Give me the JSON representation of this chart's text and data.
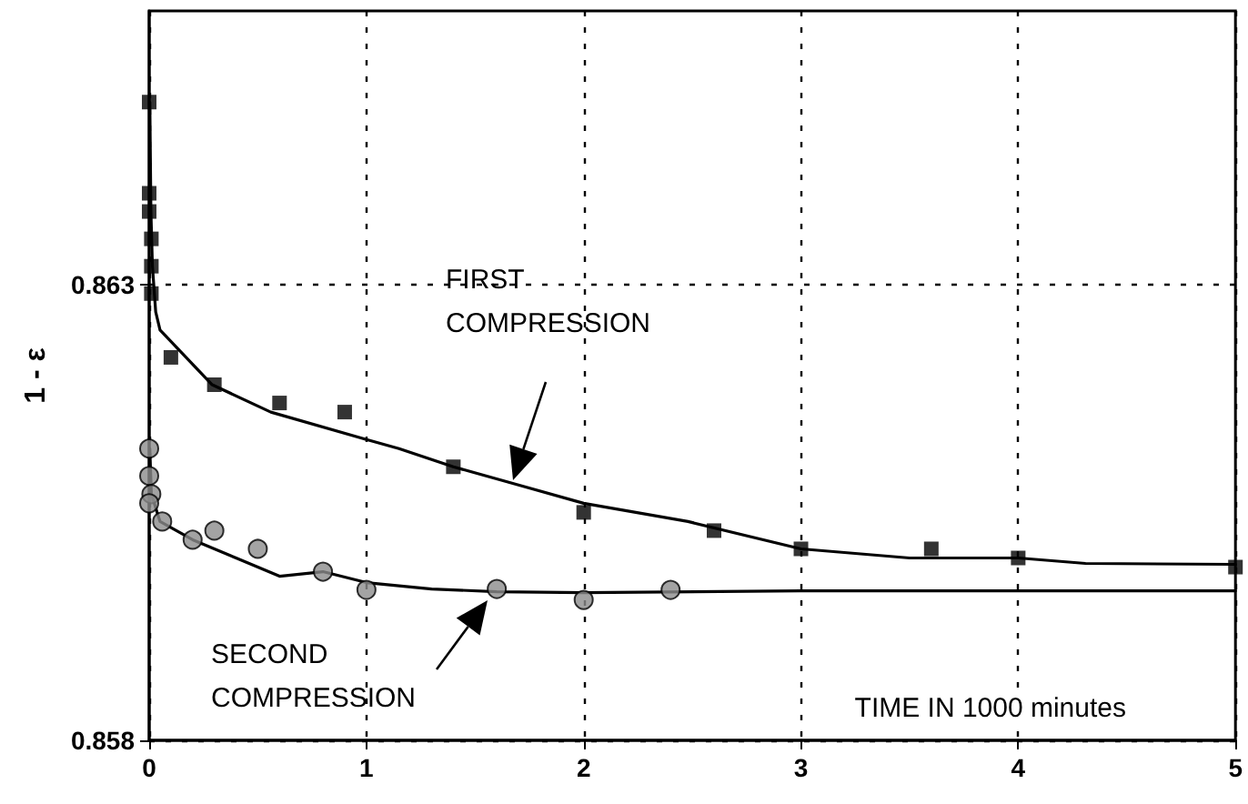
{
  "chart_data": {
    "type": "scatter",
    "xlabel": "TIME IN 1000 minutes",
    "ylabel": "1 - ε",
    "xlim": [
      0,
      5
    ],
    "xticks": [
      0,
      1,
      2,
      3,
      4,
      5
    ],
    "ylim": [
      0.858,
      0.866
    ],
    "yticks": [
      0.858,
      0.863
    ],
    "grid": true,
    "series": [
      {
        "marker": "square",
        "color": "#000000",
        "x": [
          0,
          0,
          0,
          0.01,
          0.01,
          0.01,
          0.1,
          0.3,
          0.6,
          0.9,
          1.4,
          2,
          2.6,
          3,
          3.6,
          4,
          5
        ],
        "values": [
          0.865,
          0.864,
          0.8638,
          0.8635,
          0.8632,
          0.8629,
          0.8622,
          0.8619,
          0.8617,
          0.8616,
          0.861,
          0.8605,
          0.8603,
          0.8601,
          0.8601,
          0.86,
          0.8599
        ]
      },
      {
        "marker": "circle",
        "color": "#8c8c8c",
        "x": [
          0,
          0,
          0.01,
          0,
          0.06,
          0.2,
          0.3,
          0.5,
          0.8,
          1,
          1.6,
          2,
          2.4
        ],
        "values": [
          0.8612,
          0.8609,
          0.8607,
          0.8606,
          0.8604,
          0.8602,
          0.8603,
          0.8601,
          0.85985,
          0.85965,
          0.85966,
          0.85954,
          0.85965
        ]
      },
      {
        "type": "line",
        "marker": "none",
        "line_style": "solid",
        "color": "#000000",
        "x": [
          0.003,
          0.008,
          0.015,
          0.03,
          0.05,
          0.09,
          0.29,
          0.56,
          1,
          1.15,
          1.4,
          1.7,
          2,
          2.48,
          3,
          3.5,
          4,
          4.31,
          5
        ],
        "values": [
          0.865,
          0.8638,
          0.8632,
          0.8627,
          0.8625,
          0.8624,
          0.8619,
          0.8616,
          0.8613,
          0.8612,
          0.861,
          0.8608,
          0.8606,
          0.8604,
          0.8601,
          0.86,
          0.86,
          0.85994,
          0.85993
        ]
      },
      {
        "type": "line",
        "marker": "none",
        "line_style": "solid",
        "color": "#000000",
        "x": [
          0.003,
          0.01,
          0.05,
          0.2,
          0.4,
          0.6,
          0.8,
          1,
          1.3,
          1.6,
          2,
          3,
          5
        ],
        "values": [
          0.8612,
          0.8607,
          0.8604,
          0.8602,
          0.86,
          0.8598,
          0.85985,
          0.85973,
          0.85966,
          0.85963,
          0.85962,
          0.85964,
          0.85964
        ]
      }
    ],
    "annotations": [
      "FIRST COMPRESSION",
      "SECOND COMPRESSION"
    ]
  }
}
